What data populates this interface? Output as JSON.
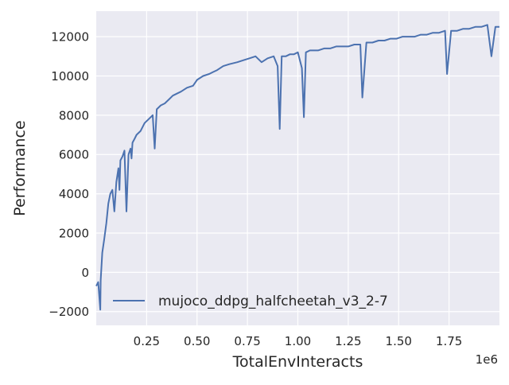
{
  "chart_data": {
    "type": "line",
    "xlabel": "TotalEnvInteracts",
    "ylabel": "Performance",
    "x_offset_label": "1e6",
    "xlim": [
      0,
      2000000
    ],
    "ylim": [
      -2700,
      13300
    ],
    "xticks": [
      250000,
      500000,
      750000,
      1000000,
      1250000,
      1500000,
      1750000
    ],
    "xtick_labels": [
      "0.25",
      "0.50",
      "0.75",
      "1.00",
      "1.25",
      "1.50",
      "1.75"
    ],
    "yticks": [
      -2000,
      0,
      2000,
      4000,
      6000,
      8000,
      10000,
      12000
    ],
    "ytick_labels": [
      "−2000",
      "0",
      "2000",
      "4000",
      "6000",
      "8000",
      "10000",
      "12000"
    ],
    "grid": true,
    "legend_position": "lower-right",
    "colors": {
      "background": "#eaeaf2",
      "grid": "#ffffff",
      "line": "#4c72b0"
    },
    "series": [
      {
        "name": "mujoco_ddpg_halfcheetah_v3_2-7",
        "x": [
          0,
          10000,
          20000,
          22000,
          30000,
          40000,
          50000,
          60000,
          70000,
          80000,
          90000,
          100000,
          110000,
          115000,
          120000,
          130000,
          140000,
          150000,
          160000,
          170000,
          175000,
          180000,
          190000,
          200000,
          220000,
          240000,
          260000,
          280000,
          290000,
          300000,
          320000,
          340000,
          360000,
          380000,
          400000,
          420000,
          450000,
          480000,
          500000,
          530000,
          560000,
          580000,
          600000,
          630000,
          660000,
          700000,
          730000,
          760000,
          790000,
          820000,
          850000,
          880000,
          900000,
          910000,
          920000,
          940000,
          960000,
          980000,
          1000000,
          1020000,
          1030000,
          1040000,
          1060000,
          1080000,
          1100000,
          1130000,
          1160000,
          1190000,
          1220000,
          1250000,
          1280000,
          1310000,
          1320000,
          1340000,
          1370000,
          1400000,
          1430000,
          1460000,
          1490000,
          1520000,
          1550000,
          1580000,
          1610000,
          1640000,
          1670000,
          1700000,
          1730000,
          1740000,
          1760000,
          1790000,
          1820000,
          1850000,
          1880000,
          1910000,
          1940000,
          1960000,
          1980000,
          2000000
        ],
        "y": [
          -700,
          -500,
          -1900,
          -400,
          1000,
          1700,
          2500,
          3500,
          4000,
          4200,
          3100,
          4600,
          5300,
          4200,
          5700,
          5900,
          6200,
          3100,
          6000,
          6300,
          5800,
          6600,
          6800,
          7000,
          7200,
          7600,
          7800,
          8000,
          6300,
          8300,
          8500,
          8600,
          8800,
          9000,
          9100,
          9200,
          9400,
          9500,
          9800,
          10000,
          10100,
          10200,
          10300,
          10500,
          10600,
          10700,
          10800,
          10900,
          11000,
          10700,
          10900,
          11000,
          10500,
          7300,
          11000,
          11000,
          11100,
          11100,
          11200,
          10400,
          7900,
          11200,
          11300,
          11300,
          11300,
          11400,
          11400,
          11500,
          11500,
          11500,
          11600,
          11600,
          8900,
          11700,
          11700,
          11800,
          11800,
          11900,
          11900,
          12000,
          12000,
          12000,
          12100,
          12100,
          12200,
          12200,
          12300,
          10100,
          12300,
          12300,
          12400,
          12400,
          12500,
          12500,
          12600,
          11000,
          12500,
          12500
        ]
      }
    ]
  }
}
